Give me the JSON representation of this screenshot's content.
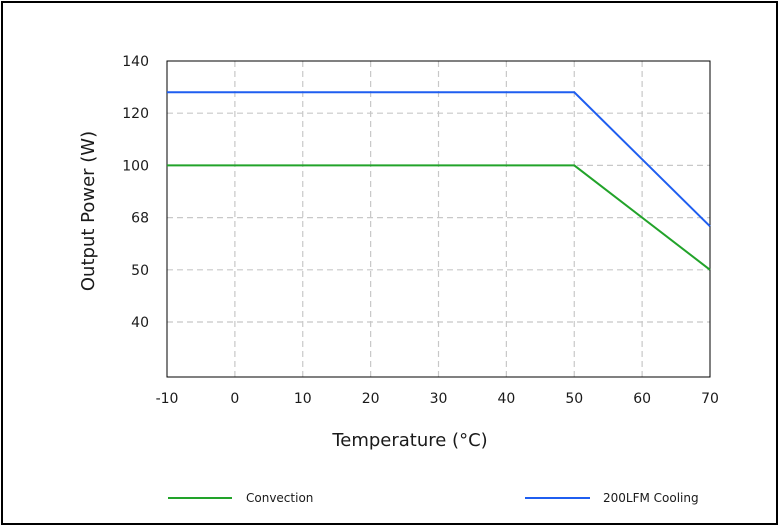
{
  "chart_data": {
    "type": "line",
    "xlabel": "Temperature (°C)",
    "ylabel": "Output Power (W)",
    "xlim": [
      -10,
      70
    ],
    "xticks": [
      -10,
      0,
      10,
      20,
      30,
      40,
      50,
      60,
      70
    ],
    "yticks": [
      {
        "value": 40,
        "label": "40"
      },
      {
        "value": 50,
        "label": "50"
      },
      {
        "value": 68,
        "label": "68"
      },
      {
        "value": 100,
        "label": "100"
      },
      {
        "value": 120,
        "label": "120"
      },
      {
        "value": 140,
        "label": "140"
      }
    ],
    "grid": true,
    "legend_position": "bottom",
    "series": [
      {
        "name": "Convection",
        "color": "#22a32a",
        "x": [
          -10,
          50,
          70
        ],
        "y": [
          100,
          100,
          50
        ]
      },
      {
        "name": "200LFM Cooling",
        "color": "#1f5ef0",
        "x": [
          -10,
          50,
          70
        ],
        "y": [
          128,
          128,
          65
        ]
      }
    ]
  }
}
